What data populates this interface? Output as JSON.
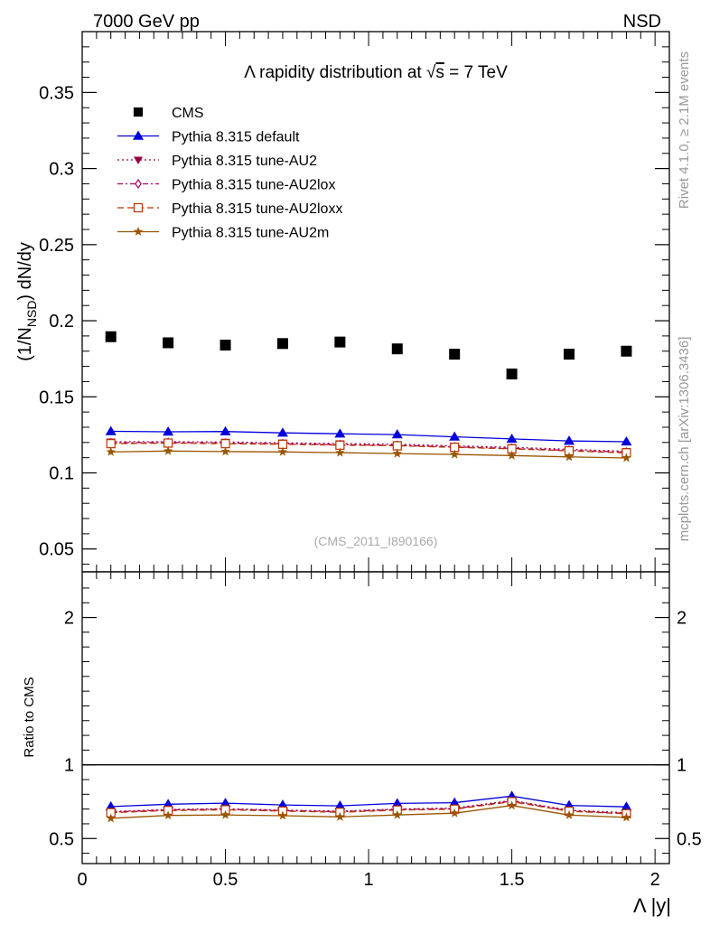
{
  "header": {
    "left": "7000 GeV pp",
    "right": "NSD"
  },
  "side": {
    "rivet": "Rivet 4.1.0, ≥ 2.1M events",
    "mcplots": "mcplots.cern.ch [arXiv:1306.3436]"
  },
  "chart_data": [
    {
      "type": "scatter",
      "title": "Λ rapidity distribution at √s = 7 TeV",
      "title_parts": {
        "prefix": "Λ rapidity distribution at ",
        "sqrt": "√",
        "s": "s",
        "suffix": " = 7 TeV"
      },
      "ylabel": "(1/N_NSD) dN/dy",
      "ylabel_parts": {
        "a": "(1/N",
        "sub": "NSD",
        "b": ") dN/dy"
      },
      "xlabel": "Λ |y|",
      "watermark": "(CMS_2011_I890166)",
      "xlim": [
        0,
        2.05
      ],
      "ylim": [
        0.035,
        0.39
      ],
      "x_ticks": [
        "0",
        "0.5",
        "1",
        "1.5",
        "2"
      ],
      "y_ticks": [
        "0.05",
        "0.1",
        "0.15",
        "0.2",
        "0.25",
        "0.3",
        "0.35"
      ],
      "x": [
        0.1,
        0.3,
        0.5,
        0.7,
        0.9,
        1.1,
        1.3,
        1.5,
        1.7,
        1.9
      ],
      "series": [
        {
          "name": "CMS",
          "color": "#000000",
          "marker": "square-filled",
          "line": "none",
          "values": [
            0.1895,
            0.1855,
            0.184,
            0.185,
            0.186,
            0.1815,
            0.178,
            0.165,
            0.178,
            0.18
          ]
        },
        {
          "name": "Pythia 8.315 default",
          "color": "#0000dd",
          "marker": "triangle-filled",
          "line": "solid",
          "values": [
            0.1273,
            0.127,
            0.1272,
            0.1263,
            0.1257,
            0.1252,
            0.1237,
            0.1223,
            0.121,
            0.1205
          ]
        },
        {
          "name": "Pythia 8.315 tune-AU2",
          "color": "#990044",
          "marker": "triangle-down-filled",
          "line": "dotted",
          "values": [
            0.1205,
            0.1205,
            0.1203,
            0.1198,
            0.1193,
            0.1188,
            0.1178,
            0.1168,
            0.1155,
            0.1142
          ]
        },
        {
          "name": "Pythia 8.315 tune-AU2lox",
          "color": "#aa0066",
          "marker": "diamond-open",
          "line": "dashdot",
          "values": [
            0.1198,
            0.12,
            0.1196,
            0.1192,
            0.1186,
            0.1181,
            0.1171,
            0.1161,
            0.1148,
            0.1136
          ]
        },
        {
          "name": "Pythia 8.315 tune-AU2loxx",
          "color": "#bb3300",
          "marker": "square-open",
          "line": "dashed",
          "values": [
            0.1192,
            0.1196,
            0.1192,
            0.1188,
            0.1182,
            0.1178,
            0.1168,
            0.1158,
            0.1145,
            0.1132
          ]
        },
        {
          "name": "Pythia 8.315 tune-AU2m",
          "color": "#995500",
          "marker": "star-filled",
          "line": "solid",
          "values": [
            0.1138,
            0.1144,
            0.114,
            0.1138,
            0.1133,
            0.1127,
            0.1121,
            0.1114,
            0.1105,
            0.1098
          ]
        }
      ]
    },
    {
      "type": "line",
      "ylabel": "Ratio to CMS",
      "xlim": [
        0,
        2.05
      ],
      "ylim": [
        0.33,
        2.31
      ],
      "y_ticks": [
        "0.5",
        "1",
        "2"
      ],
      "x": [
        0.1,
        0.3,
        0.5,
        0.7,
        0.9,
        1.1,
        1.3,
        1.5,
        1.7,
        1.9
      ],
      "reference": 1,
      "series": [
        {
          "name": "Pythia 8.315 default",
          "color": "#0000dd",
          "marker": "triangle-filled",
          "line": "solid",
          "values": [
            0.717,
            0.733,
            0.74,
            0.728,
            0.722,
            0.738,
            0.743,
            0.788,
            0.725,
            0.715
          ]
        },
        {
          "name": "Pythia 8.315 tune-AU2",
          "color": "#990044",
          "marker": "triangle-down-filled",
          "line": "dotted",
          "values": [
            0.683,
            0.697,
            0.702,
            0.693,
            0.686,
            0.7,
            0.707,
            0.758,
            0.692,
            0.675
          ]
        },
        {
          "name": "Pythia 8.315 tune-AU2lox",
          "color": "#aa0066",
          "marker": "diamond-open",
          "line": "dashdot",
          "values": [
            0.679,
            0.694,
            0.699,
            0.69,
            0.682,
            0.697,
            0.703,
            0.754,
            0.688,
            0.671
          ]
        },
        {
          "name": "Pythia 8.315 tune-AU2loxx",
          "color": "#bb3300",
          "marker": "square-open",
          "line": "dashed",
          "values": [
            0.675,
            0.69,
            0.695,
            0.686,
            0.678,
            0.693,
            0.699,
            0.75,
            0.685,
            0.668
          ]
        },
        {
          "name": "Pythia 8.315 tune-AU2m",
          "color": "#995500",
          "marker": "star-filled",
          "line": "solid",
          "values": [
            0.637,
            0.657,
            0.66,
            0.655,
            0.647,
            0.66,
            0.672,
            0.724,
            0.659,
            0.643
          ]
        }
      ]
    }
  ]
}
